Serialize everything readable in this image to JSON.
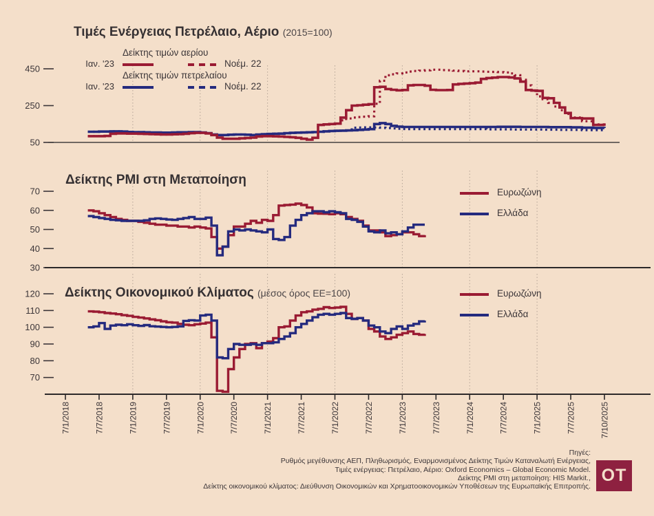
{
  "colors": {
    "background": "#f4dfca",
    "eurozone_red": "#9a1b33",
    "greece_navy": "#242a7e",
    "text": "#3b3538",
    "axis": "#2c2829",
    "grid": "#b3a496",
    "logo_bg": "#8e2140"
  },
  "panel1": {
    "title": "Τιμές Ενέργειας Πετρέλαιο, Αέριο",
    "subtitle": "(2015=100)",
    "legend": {
      "gas_series": "Δείκτης τιμών αερίου",
      "oil_series": "Δείκτης τιμών πετρελαίου",
      "solid_vintage": "Ιαν. '23",
      "dashed_vintage": "Νοέμ. 22"
    }
  },
  "panel2": {
    "title": "Δείκτης PMI στη Μεταποίηση",
    "legend": {
      "eurozone": "Ευρωζώνη",
      "greece": "Ελλάδα"
    }
  },
  "panel3": {
    "title": "Δείκτης Οικονομικού Κλίματος",
    "subtitle": "(μέσος όρος ΕΕ=100)",
    "legend": {
      "eurozone": "Ευρωζώνη",
      "greece": "Ελλάδα"
    }
  },
  "footer": {
    "lines": [
      "Πηγές:",
      "Ρυθμός μεγέθυνσης ΑΕΠ, Πληθωρισμός, Εναρμονισμένος Δείκτης Τιμών Καταναλωτή Ενέργειας,",
      "Τιμές ενέργειας: Πετρέλαιο, Αέριο: Oxford Economics – Global Economic Model.",
      "Δείκτης PMI στη μεταποίηση: HIS Markit.,",
      "Δείκτης οικονομικού κλίματος: Διεύθυνση Οικονομικών και Χρηματοοικονομικών Υποθέσεων της Ευρωπαϊκής Επιτροπής."
    ]
  },
  "logo": {
    "text": "OT"
  },
  "chart_data": {
    "x_axis_labels": [
      "7/1/2018",
      "7/7/2018",
      "7/1/2019",
      "7/7/2019",
      "7/1/2020",
      "7/7/2020",
      "7/1/2021",
      "7/7/2021",
      "7/1/2022",
      "7/7/2022",
      "7/1/2023",
      "7/7/2023",
      "7/1/2024",
      "7/7/2024",
      "7/1/2025",
      "7/7/2025",
      "7/10/2025"
    ],
    "time_base": "values are monthly; month 0 = Jan 2018; axis labels every 6 months, last gap 3 months",
    "charts": [
      {
        "type": "line",
        "title": "Τιμές Ενέργειας Πετρέλαιο, Αέριο (2015=100)",
        "yticks": [
          450,
          250,
          50
        ],
        "ylim": [
          50,
          470
        ],
        "series": [
          {
            "name": "oil_nov22",
            "label": "Δείκτης τιμών πετρελαίου (Νοέμ. 22)",
            "color": "#242a7e",
            "style": "dotted",
            "start_month": 4,
            "values": [
              108,
              108,
              109,
              109,
              110,
              110,
              109,
              107,
              106,
              106,
              105,
              104,
              104,
              103,
              103,
              104,
              105,
              105,
              106,
              106,
              104,
              100,
              93,
              90,
              90,
              92,
              93,
              93,
              92,
              90,
              93,
              95,
              96,
              97,
              98,
              100,
              102,
              103,
              104,
              105,
              106,
              108,
              110,
              112,
              113,
              114,
              115,
              130,
              131,
              132,
              132,
              131,
              130,
              128,
              126,
              124,
              123,
              122,
              122,
              122,
              122,
              122,
              122,
              122,
              122,
              122,
              122,
              122,
              122,
              122,
              122,
              121,
              121,
              121,
              121,
              121,
              120,
              120,
              120,
              120,
              120,
              119,
              119,
              119,
              118,
              118,
              118,
              117,
              117,
              116
            ]
          },
          {
            "name": "gas_nov22",
            "label": "Δείκτης τιμών αερίου (Νοέμ. 22)",
            "color": "#9a1b33",
            "style": "dotted",
            "start_month": 4,
            "values": [
              84,
              84,
              84,
              85,
              97,
              99,
              99,
              98,
              98,
              97,
              96,
              95,
              94,
              93,
              93,
              94,
              95,
              97,
              100,
              102,
              102,
              99,
              90,
              76,
              70,
              70,
              70,
              72,
              74,
              76,
              82,
              84,
              84,
              83,
              82,
              80,
              78,
              75,
              70,
              65,
              75,
              145,
              148,
              150,
              152,
              170,
              180,
              185,
              188,
              190,
              192,
              260,
              385,
              415,
              420,
              425,
              430,
              435,
              438,
              440,
              442,
              445,
              445,
              443,
              442,
              440,
              438,
              436,
              436,
              436,
              435,
              434,
              433,
              432,
              430,
              425,
              415,
              390,
              360,
              330,
              300,
              285,
              265,
              245,
              225,
              205,
              185,
              165,
              148,
              138
            ]
          },
          {
            "name": "oil_jan23",
            "label": "Δείκτης τιμών πετρελαίου (Ιαν. '23)",
            "color": "#242a7e",
            "style": "solid",
            "start_month": 4,
            "values": [
              108,
              108,
              109,
              109,
              110,
              110,
              109,
              107,
              106,
              106,
              105,
              104,
              104,
              103,
              103,
              104,
              105,
              105,
              106,
              106,
              104,
              100,
              93,
              90,
              90,
              92,
              93,
              93,
              92,
              90,
              93,
              95,
              96,
              97,
              98,
              100,
              102,
              103,
              104,
              105,
              106,
              108,
              110,
              112,
              113,
              114,
              115,
              116,
              118,
              120,
              122,
              150,
              155,
              150,
              140,
              136,
              134,
              134,
              134,
              134,
              134,
              134,
              134,
              134,
              134,
              134,
              134,
              134,
              134,
              134,
              134,
              134,
              134,
              135,
              135,
              135,
              135,
              134,
              134,
              134,
              134,
              134,
              133,
              133,
              133,
              133,
              132,
              130,
              129,
              128
            ]
          },
          {
            "name": "gas_jan23",
            "label": "Δείκτης τιμών αερίου (Ιαν. '23)",
            "color": "#9a1b33",
            "style": "solid",
            "start_month": 4,
            "values": [
              84,
              84,
              84,
              85,
              97,
              99,
              99,
              98,
              98,
              97,
              96,
              95,
              94,
              93,
              93,
              94,
              95,
              97,
              100,
              102,
              102,
              99,
              90,
              76,
              70,
              70,
              70,
              72,
              74,
              76,
              82,
              84,
              84,
              83,
              82,
              80,
              78,
              75,
              70,
              65,
              75,
              145,
              148,
              150,
              152,
              185,
              225,
              250,
              252,
              255,
              258,
              350,
              352,
              340,
              336,
              333,
              335,
              360,
              362,
              362,
              358,
              336,
              334,
              334,
              335,
              365,
              368,
              370,
              372,
              375,
              395,
              400,
              402,
              405,
              405,
              403,
              398,
              380,
              335,
              332,
              330,
              292,
              290,
              265,
              240,
              210,
              182,
              180,
              145,
              140
            ]
          }
        ]
      },
      {
        "type": "line",
        "title": "Δείκτης PMI στη Μεταποίηση",
        "yticks": [
          70,
          60,
          50,
          40,
          30
        ],
        "ylim": [
          30,
          72
        ],
        "series": [
          {
            "name": "pmi_eurozone",
            "label": "Ευρωζώνη",
            "color": "#9a1b33",
            "style": "solid",
            "start_month": 4,
            "values": [
              60,
              59.5,
              58.5,
              57.5,
              56.5,
              55.5,
              55,
              54.5,
              54.5,
              54,
              53.5,
              53,
              52.5,
              52.5,
              52,
              52,
              51.5,
              51.5,
              51,
              51.5,
              51,
              50.5,
              46,
              40,
              41,
              47,
              51.5,
              51.5,
              53,
              54.5,
              53.5,
              55,
              54.5,
              57.5,
              62.5,
              62.8,
              63,
              63.5,
              62.8,
              61.5,
              58.5,
              58.3,
              58.2,
              58,
              58.5,
              58,
              56.5,
              55.5,
              54.5,
              52,
              49.5,
              49.5,
              48.5,
              46.5,
              47,
              47.5,
              48.5,
              48.5,
              47.5,
              46.5,
              47
            ]
          },
          {
            "name": "pmi_greece",
            "label": "Ελλάδα",
            "color": "#242a7e",
            "style": "solid",
            "start_month": 4,
            "values": [
              57,
              56.5,
              56,
              55.5,
              55,
              54.8,
              54.5,
              54.5,
              54.5,
              54.5,
              54.8,
              55.5,
              55.8,
              55.5,
              55.2,
              55,
              55.5,
              56,
              56.5,
              55.5,
              55.5,
              56.2,
              52,
              36.5,
              41,
              49,
              50,
              49.5,
              50,
              49.5,
              49,
              48.5,
              50,
              45,
              44.5,
              46,
              52,
              55,
              57.5,
              58.5,
              59.5,
              59.5,
              59,
              59.5,
              59,
              58.5,
              55.5,
              55,
              54,
              51.5,
              49,
              48.5,
              49.5,
              48,
              48.5,
              47.5,
              49,
              51,
              52.5,
              52.5,
              52.5
            ]
          }
        ]
      },
      {
        "type": "line",
        "title": "Δείκτης Οικονομικού Κλίματος (μέσος όρος ΕΕ=100)",
        "yticks": [
          120,
          110,
          100,
          90,
          80,
          70
        ],
        "ylim": [
          58,
          122
        ],
        "series": [
          {
            "name": "esi_eurozone",
            "label": "Ευρωζώνη",
            "color": "#9a1b33",
            "style": "solid",
            "start_month": 4,
            "values": [
              109.5,
              109.3,
              109,
              108.5,
              108.2,
              107.8,
              107.2,
              106.8,
              106.2,
              105.8,
              105.3,
              104.7,
              104.2,
              103.5,
              103,
              102.8,
              102,
              101.5,
              101.2,
              101.8,
              102.2,
              102.8,
              94,
              62,
              61.5,
              75,
              82,
              87,
              90,
              90.5,
              87.5,
              90.5,
              91.5,
              93.5,
              100,
              100.5,
              104,
              107,
              109,
              109.5,
              110.5,
              111,
              112,
              111.5,
              111.8,
              112.2,
              108,
              105,
              105.5,
              104,
              99,
              97.5,
              94.5,
              93,
              94,
              95.5,
              96.5,
              97.5,
              96,
              95.5,
              96
            ]
          },
          {
            "name": "esi_greece",
            "label": "Ελλάδα",
            "color": "#242a7e",
            "style": "solid",
            "start_month": 4,
            "values": [
              100,
              100.5,
              102.5,
              99,
              101,
              101.5,
              101.2,
              101.8,
              101.2,
              100.8,
              101.3,
              100.6,
              100.4,
              100.2,
              100,
              100.2,
              100.5,
              103.8,
              104.2,
              104,
              107,
              107.5,
              104,
              82,
              81.5,
              87,
              90,
              89.5,
              89.5,
              90,
              89.5,
              90.5,
              90.5,
              91,
              93,
              94.5,
              96.5,
              100,
              102,
              104,
              106,
              107.5,
              108,
              107.5,
              108,
              108.5,
              105.5,
              105,
              105.5,
              104,
              101,
              100,
              97.5,
              96.5,
              99,
              100.5,
              99,
              101,
              102,
              103.5,
              104
            ]
          }
        ]
      }
    ]
  }
}
